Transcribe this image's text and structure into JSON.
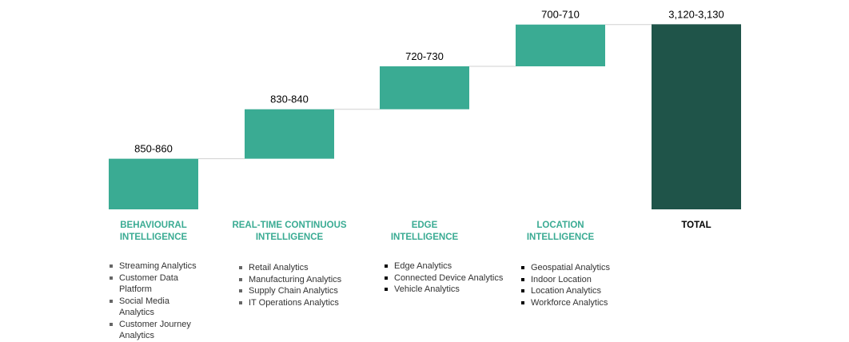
{
  "chart_data": {
    "type": "waterfall",
    "colors": {
      "bar": "#3aab93",
      "total": "#1f5449",
      "connector": "#d0d0d0",
      "label": "#3aab93",
      "total_label": "#000000"
    },
    "ylim": [
      0,
      3130
    ],
    "bars": [
      {
        "category_lines": [
          "BEHAVIOURAL",
          "INTELLIGENCE"
        ],
        "label": "850-860",
        "value": 855
      },
      {
        "category_lines": [
          "REAL-TIME CONTINUOUS",
          "INTELLIGENCE"
        ],
        "label": "830-840",
        "value": 835
      },
      {
        "category_lines": [
          "EDGE",
          "INTELLIGENCE"
        ],
        "label": "720-730",
        "value": 725
      },
      {
        "category_lines": [
          "LOCATION",
          "INTELLIGENCE"
        ],
        "label": "700-710",
        "value": 705
      },
      {
        "category_lines": [
          "TOTAL"
        ],
        "label": "3,120-3,130",
        "value": 3125,
        "is_total": true
      }
    ]
  },
  "lists": [
    {
      "bullet_color": "gray",
      "items": [
        "Streaming Analytics",
        "Customer Data Platform",
        "Social Media Analytics",
        "Customer Journey Analytics"
      ]
    },
    {
      "bullet_color": "gray",
      "items": [
        "Retail Analytics",
        "Manufacturing Analytics",
        "Supply Chain Analytics",
        "IT Operations Analytics"
      ]
    },
    {
      "bullet_color": "black",
      "items": [
        "Edge Analytics",
        "Connected Device Analytics",
        "Vehicle Analytics"
      ]
    },
    {
      "bullet_color": "black",
      "items": [
        "Geospatial Analytics",
        "Indoor Location",
        "Location Analytics",
        "Workforce Analytics"
      ]
    }
  ]
}
